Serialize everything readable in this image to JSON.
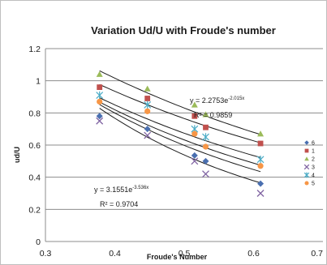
{
  "chart_data": {
    "type": "scatter",
    "title": "Variation  Ud/U with Froude's number",
    "xlabel": "Froude's Number",
    "ylabel": "ud/U",
    "xlim": [
      0.3,
      0.7
    ],
    "ylim": [
      0,
      1.2
    ],
    "xticks": [
      "0.3",
      "0.4",
      "0.5",
      "0.6",
      "0.7"
    ],
    "yticks": [
      "0",
      "0.2",
      "0.4",
      "0.6",
      "0.8",
      "1",
      "1.2"
    ],
    "grid": "horizontal",
    "legend_position": "right",
    "series": [
      {
        "name": "6",
        "marker": "diamond",
        "color": "#4a6fb0",
        "points": [
          [
            0.378,
            0.78
          ],
          [
            0.447,
            0.7
          ],
          [
            0.515,
            0.535
          ],
          [
            0.531,
            0.5
          ],
          [
            0.61,
            0.36
          ]
        ]
      },
      {
        "name": "1",
        "marker": "square",
        "color": "#c0504d",
        "points": [
          [
            0.378,
            0.96
          ],
          [
            0.447,
            0.89
          ],
          [
            0.515,
            0.78
          ],
          [
            0.531,
            0.71
          ],
          [
            0.61,
            0.61
          ]
        ]
      },
      {
        "name": "2",
        "marker": "triangle",
        "color": "#9bbb59",
        "points": [
          [
            0.378,
            1.04
          ],
          [
            0.447,
            0.95
          ],
          [
            0.515,
            0.85
          ],
          [
            0.531,
            0.79
          ],
          [
            0.61,
            0.67
          ]
        ]
      },
      {
        "name": "3",
        "marker": "x",
        "color": "#8064a2",
        "points": [
          [
            0.378,
            0.75
          ],
          [
            0.447,
            0.66
          ],
          [
            0.515,
            0.5
          ],
          [
            0.531,
            0.42
          ],
          [
            0.61,
            0.3
          ]
        ]
      },
      {
        "name": "4",
        "marker": "star",
        "color": "#4bacc6",
        "points": [
          [
            0.378,
            0.91
          ],
          [
            0.447,
            0.85
          ],
          [
            0.515,
            0.7
          ],
          [
            0.531,
            0.65
          ],
          [
            0.61,
            0.51
          ]
        ]
      },
      {
        "name": "5",
        "marker": "circle",
        "color": "#f79646",
        "points": [
          [
            0.378,
            0.87
          ],
          [
            0.447,
            0.81
          ],
          [
            0.515,
            0.67
          ],
          [
            0.531,
            0.59
          ],
          [
            0.61,
            0.47
          ]
        ]
      }
    ],
    "trendlines": [
      {
        "series": "2",
        "a": 2.2753,
        "b": -2.015,
        "x_range": [
          0.378,
          0.61
        ]
      },
      {
        "series": "1",
        "a": 2.08,
        "b": -2.0,
        "x_range": [
          0.378,
          0.61
        ]
      },
      {
        "series": "4",
        "a": 2.15,
        "b": -2.32,
        "x_range": [
          0.378,
          0.61
        ]
      },
      {
        "series": "5",
        "a": 2.32,
        "b": -2.6,
        "x_range": [
          0.378,
          0.61
        ]
      },
      {
        "series": "6",
        "a": 2.55,
        "b": -2.9,
        "x_range": [
          0.378,
          0.61
        ]
      },
      {
        "series": "3",
        "a": 3.1551,
        "b": -3.536,
        "x_range": [
          0.378,
          0.61
        ]
      }
    ],
    "annotations": [
      {
        "id": "eq1",
        "equation_base": "y = 2.2753e",
        "equation_exp": "-2.015x",
        "r2": "R² = 0.9859"
      },
      {
        "id": "eq2",
        "equation_base": "y = 3.1551e",
        "equation_exp": "-3.536x",
        "r2": "R² = 0.9704"
      }
    ]
  }
}
